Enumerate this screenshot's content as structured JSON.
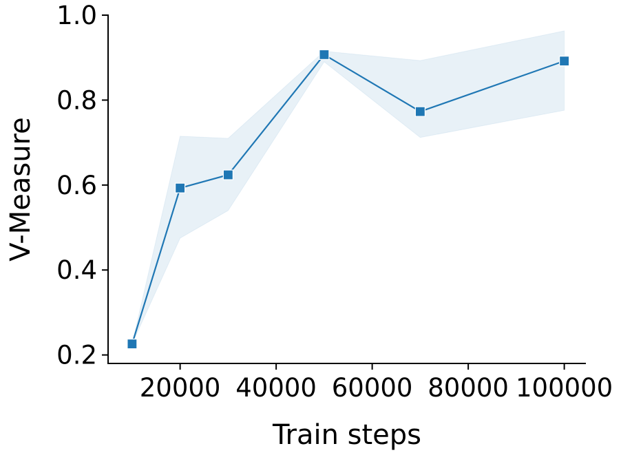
{
  "chart_data": {
    "type": "line",
    "title": "",
    "xlabel": "Train steps",
    "ylabel": "V-Measure",
    "xlim": [
      5000,
      104500
    ],
    "ylim": [
      0.18,
      1.0
    ],
    "x_ticks": [
      20000,
      40000,
      60000,
      80000,
      100000
    ],
    "x_tick_labels": [
      "20000",
      "40000",
      "60000",
      "80000",
      "100000"
    ],
    "y_ticks": [
      0.2,
      0.4,
      0.6,
      0.8,
      1.0
    ],
    "y_tick_labels": [
      "0.2",
      "0.4",
      "0.6",
      "0.8",
      "1.0"
    ],
    "grid": false,
    "legend": "none",
    "series": [
      {
        "x": [
          10000,
          20000,
          30000,
          50000,
          70000,
          100000
        ],
        "y": [
          0.226,
          0.593,
          0.624,
          0.907,
          0.773,
          0.892
        ],
        "ci_lower": [
          0.226,
          0.475,
          0.54,
          0.89,
          0.712,
          0.776
        ],
        "ci_upper": [
          0.226,
          0.715,
          0.71,
          0.915,
          0.893,
          0.963
        ],
        "color": "#1f77b4",
        "band_color": "#1f77b4",
        "marker": "square"
      }
    ]
  }
}
